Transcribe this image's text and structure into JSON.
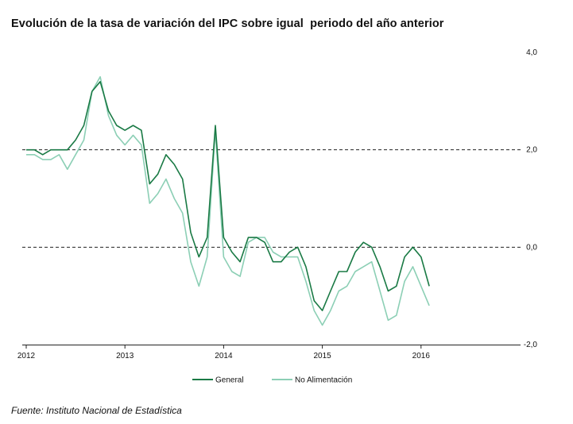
{
  "chart_data": {
    "type": "line",
    "title": "Evolución de la tasa de variación del IPC sobre igual  periodo del año anterior",
    "source": "Fuente: Instituto Nacional de Estadística",
    "x_start": "2012-01",
    "x_tick_labels": [
      "2012",
      "2013",
      "2014",
      "2015",
      "2016"
    ],
    "y_tick_labels": [
      "4,0",
      "2,0",
      "0,0",
      "-2,0"
    ],
    "ylim": [
      -2.0,
      4.0
    ],
    "y_ticks": [
      4.0,
      2.0,
      0.0,
      -2.0
    ],
    "reference_lines": [
      2.0,
      0.0
    ],
    "legend_position": "bottom",
    "series": [
      {
        "name": "General",
        "color": "#1a7a45",
        "values": [
          2.0,
          2.0,
          1.9,
          2.0,
          2.0,
          2.0,
          2.2,
          2.5,
          3.2,
          3.4,
          2.8,
          2.5,
          2.4,
          2.5,
          2.4,
          1.3,
          1.5,
          1.9,
          1.7,
          1.4,
          0.3,
          -0.2,
          0.2,
          2.5,
          0.2,
          -0.1,
          -0.3,
          0.2,
          0.2,
          0.1,
          -0.3,
          -0.3,
          -0.1,
          0.0,
          -0.4,
          -1.1,
          -1.3,
          -0.9,
          -0.5,
          -0.5,
          -0.1,
          0.1,
          0.0,
          -0.4,
          -0.9,
          -0.8,
          -0.2,
          0.0,
          -0.2,
          -0.8
        ]
      },
      {
        "name": "No Alimentación",
        "color": "#8ccfb5",
        "values": [
          1.9,
          1.9,
          1.8,
          1.8,
          1.9,
          1.6,
          1.9,
          2.2,
          3.2,
          3.5,
          2.7,
          2.3,
          2.1,
          2.3,
          2.1,
          0.9,
          1.1,
          1.4,
          1.0,
          0.7,
          -0.3,
          -0.8,
          -0.2,
          2.4,
          -0.2,
          -0.5,
          -0.6,
          0.1,
          0.2,
          0.2,
          -0.1,
          -0.2,
          -0.2,
          -0.2,
          -0.7,
          -1.3,
          -1.6,
          -1.3,
          -0.9,
          -0.8,
          -0.5,
          -0.4,
          -0.3,
          -0.9,
          -1.5,
          -1.4,
          -0.7,
          -0.4,
          -0.8,
          -1.2
        ]
      }
    ]
  }
}
